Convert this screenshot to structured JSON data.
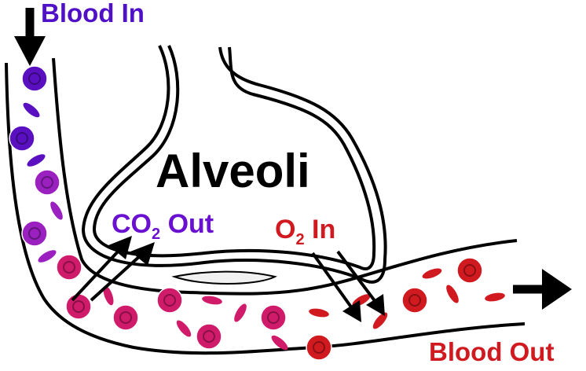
{
  "labels": {
    "blood_in": "Blood In",
    "alveoli": "Alveoli",
    "co2_out": {
      "main": "CO",
      "sub": "2",
      "rest": " Out"
    },
    "o2_in": {
      "main": "O",
      "sub": "2",
      "rest": " In"
    },
    "blood_out": "Blood Out"
  },
  "colors": {
    "blood_in_text": "#5010c8",
    "co2_text": "#6a10d0",
    "o2_text": "#d01a20",
    "blood_out_text": "#d01a20",
    "outline": "#000000",
    "deoxygenated_cell": "#5a10c0",
    "mid_cell": "#9a20c0",
    "mixed_cell": "#d01a6a",
    "oxygenated_cell": "#d01a20"
  },
  "icons": [
    "down-arrow-icon",
    "right-arrow-icon",
    "co2-arrow-icon",
    "o2-arrow-icon",
    "blood-cell-icon"
  ]
}
